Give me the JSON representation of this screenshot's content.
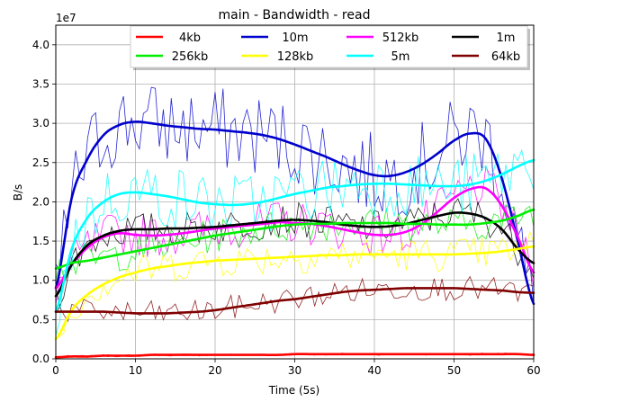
{
  "chart_data": {
    "type": "line",
    "title": "main - Bandwidth - read",
    "xlabel": "Time (5s)",
    "ylabel": "B/s",
    "y_multiplier": "1e7",
    "xlim": [
      0,
      60
    ],
    "ylim": [
      0,
      4.25
    ],
    "x_ticks": [
      0,
      10,
      20,
      30,
      40,
      50,
      60
    ],
    "y_ticks": [
      0.0,
      0.5,
      1.0,
      1.5,
      2.0,
      2.5,
      3.0,
      3.5,
      4.0
    ],
    "x_tick_labels": [
      "0",
      "10",
      "20",
      "30",
      "40",
      "50",
      "60"
    ],
    "y_tick_labels": [
      "0.0",
      "0.5",
      "1.0",
      "1.5",
      "2.0",
      "2.5",
      "3.0",
      "3.5",
      "4.0"
    ],
    "grid": true,
    "legend_position": "top",
    "x": [
      0,
      2,
      4,
      6,
      8,
      10,
      12,
      14,
      16,
      18,
      20,
      22,
      24,
      26,
      28,
      30,
      32,
      34,
      36,
      38,
      40,
      42,
      44,
      46,
      48,
      50,
      52,
      54,
      56,
      58,
      60
    ],
    "series": [
      {
        "name": "4kb",
        "color": "#ff0000",
        "values": [
          0.02,
          0.03,
          0.03,
          0.04,
          0.04,
          0.04,
          0.05,
          0.05,
          0.05,
          0.05,
          0.05,
          0.05,
          0.05,
          0.05,
          0.05,
          0.06,
          0.06,
          0.06,
          0.06,
          0.06,
          0.06,
          0.06,
          0.06,
          0.06,
          0.06,
          0.06,
          0.06,
          0.06,
          0.06,
          0.06,
          0.05
        ]
      },
      {
        "name": "10m",
        "color": "#0000cc",
        "values": [
          0.9,
          2.05,
          2.55,
          2.85,
          2.98,
          3.02,
          3.0,
          2.97,
          2.95,
          2.93,
          2.92,
          2.9,
          2.88,
          2.85,
          2.8,
          2.73,
          2.65,
          2.57,
          2.48,
          2.4,
          2.34,
          2.33,
          2.38,
          2.48,
          2.62,
          2.78,
          2.87,
          2.8,
          2.3,
          1.5,
          0.7
        ]
      },
      {
        "name": "512kb",
        "color": "#ff00ff",
        "values": [
          0.9,
          1.2,
          1.42,
          1.55,
          1.6,
          1.58,
          1.57,
          1.58,
          1.6,
          1.63,
          1.66,
          1.68,
          1.7,
          1.72,
          1.74,
          1.73,
          1.72,
          1.69,
          1.65,
          1.61,
          1.58,
          1.58,
          1.62,
          1.72,
          1.88,
          2.05,
          2.16,
          2.17,
          1.95,
          1.55,
          1.1
        ]
      },
      {
        "name": "1m",
        "color": "#000000",
        "values": [
          0.8,
          1.2,
          1.45,
          1.57,
          1.63,
          1.65,
          1.65,
          1.66,
          1.66,
          1.67,
          1.68,
          1.7,
          1.72,
          1.74,
          1.76,
          1.77,
          1.76,
          1.74,
          1.71,
          1.69,
          1.68,
          1.69,
          1.72,
          1.77,
          1.82,
          1.86,
          1.85,
          1.79,
          1.65,
          1.4,
          1.22
        ]
      },
      {
        "name": "256kb",
        "color": "#00ee00",
        "values": [
          1.15,
          1.22,
          1.25,
          1.29,
          1.33,
          1.37,
          1.41,
          1.45,
          1.49,
          1.53,
          1.57,
          1.6,
          1.63,
          1.66,
          1.69,
          1.71,
          1.72,
          1.72,
          1.73,
          1.73,
          1.73,
          1.73,
          1.72,
          1.72,
          1.71,
          1.71,
          1.71,
          1.73,
          1.76,
          1.82,
          1.9
        ]
      },
      {
        "name": "128kb",
        "color": "#ffff00",
        "values": [
          0.25,
          0.62,
          0.82,
          0.95,
          1.04,
          1.1,
          1.15,
          1.18,
          1.21,
          1.23,
          1.25,
          1.26,
          1.27,
          1.28,
          1.29,
          1.3,
          1.31,
          1.32,
          1.32,
          1.33,
          1.33,
          1.33,
          1.33,
          1.33,
          1.33,
          1.33,
          1.34,
          1.35,
          1.37,
          1.4,
          1.43
        ]
      },
      {
        "name": "5m",
        "color": "#00ffff",
        "values": [
          0.6,
          1.4,
          1.8,
          2.0,
          2.1,
          2.12,
          2.1,
          2.07,
          2.03,
          1.99,
          1.97,
          1.96,
          1.97,
          2.0,
          2.05,
          2.1,
          2.14,
          2.18,
          2.2,
          2.22,
          2.23,
          2.23,
          2.22,
          2.21,
          2.2,
          2.2,
          2.22,
          2.27,
          2.35,
          2.45,
          2.53
        ]
      },
      {
        "name": "64kb",
        "color": "#800000",
        "values": [
          0.6,
          0.6,
          0.6,
          0.6,
          0.59,
          0.58,
          0.58,
          0.58,
          0.59,
          0.6,
          0.62,
          0.65,
          0.68,
          0.71,
          0.74,
          0.76,
          0.79,
          0.82,
          0.85,
          0.87,
          0.88,
          0.89,
          0.9,
          0.9,
          0.9,
          0.9,
          0.89,
          0.88,
          0.87,
          0.85,
          0.84
        ]
      }
    ]
  }
}
